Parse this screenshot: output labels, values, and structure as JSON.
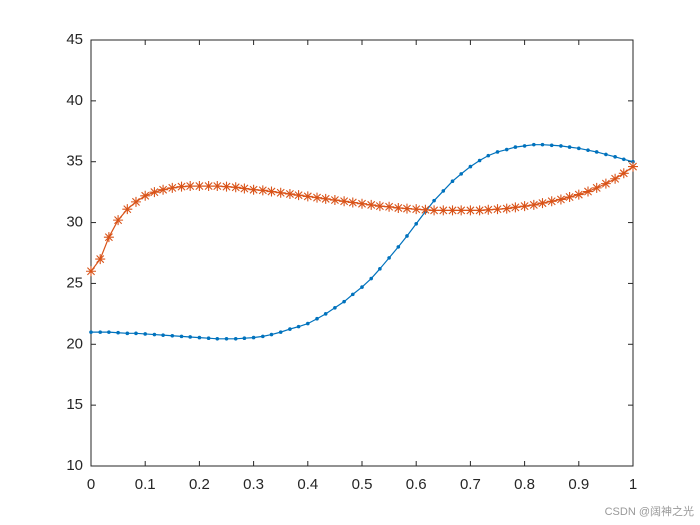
{
  "chart_data": {
    "type": "line",
    "x": [
      0,
      0.017,
      0.033,
      0.05,
      0.067,
      0.083,
      0.1,
      0.117,
      0.133,
      0.15,
      0.167,
      0.183,
      0.2,
      0.217,
      0.233,
      0.25,
      0.267,
      0.283,
      0.3,
      0.317,
      0.333,
      0.35,
      0.367,
      0.383,
      0.4,
      0.417,
      0.433,
      0.45,
      0.467,
      0.483,
      0.5,
      0.517,
      0.533,
      0.55,
      0.567,
      0.583,
      0.6,
      0.617,
      0.633,
      0.65,
      0.667,
      0.683,
      0.7,
      0.717,
      0.733,
      0.75,
      0.767,
      0.783,
      0.8,
      0.817,
      0.833,
      0.85,
      0.867,
      0.883,
      0.9,
      0.917,
      0.933,
      0.95,
      0.967,
      0.983,
      1
    ],
    "series": [
      {
        "color": "#0072bd",
        "marker": "dot",
        "values": [
          21.0,
          21.0,
          21.0,
          20.95,
          20.9,
          20.9,
          20.85,
          20.8,
          20.75,
          20.7,
          20.65,
          20.6,
          20.55,
          20.5,
          20.45,
          20.45,
          20.45,
          20.5,
          20.55,
          20.65,
          20.8,
          21.0,
          21.25,
          21.45,
          21.7,
          22.1,
          22.5,
          23.0,
          23.5,
          24.1,
          24.7,
          25.4,
          26.2,
          27.1,
          28.0,
          28.9,
          29.9,
          30.9,
          31.8,
          32.6,
          33.4,
          34.0,
          34.6,
          35.1,
          35.5,
          35.8,
          36.0,
          36.2,
          36.3,
          36.4,
          36.4,
          36.35,
          36.3,
          36.2,
          36.1,
          35.95,
          35.8,
          35.6,
          35.4,
          35.2,
          35.0
        ]
      },
      {
        "color": "#d95319",
        "marker": "asterisk",
        "values": [
          26.0,
          27.0,
          28.8,
          30.2,
          31.1,
          31.7,
          32.2,
          32.5,
          32.7,
          32.85,
          32.95,
          33.0,
          33.0,
          33.0,
          33.0,
          32.95,
          32.9,
          32.8,
          32.7,
          32.65,
          32.55,
          32.45,
          32.35,
          32.25,
          32.15,
          32.05,
          31.95,
          31.85,
          31.75,
          31.65,
          31.55,
          31.45,
          31.35,
          31.3,
          31.2,
          31.15,
          31.1,
          31.05,
          31.0,
          31.0,
          31.0,
          31.0,
          31.0,
          31.0,
          31.05,
          31.1,
          31.15,
          31.25,
          31.35,
          31.45,
          31.6,
          31.75,
          31.9,
          32.1,
          32.3,
          32.55,
          32.85,
          33.2,
          33.6,
          34.05,
          34.6
        ]
      }
    ],
    "xlim": [
      0,
      1
    ],
    "xticks": [
      0,
      0.1,
      0.2,
      0.3,
      0.4,
      0.5,
      0.6,
      0.7,
      0.8,
      0.9,
      1
    ],
    "ylim": [
      10,
      45
    ],
    "yticks": [
      10,
      15,
      20,
      25,
      30,
      35,
      40,
      45
    ],
    "grid": false,
    "watermark": "CSDN @阔神之光"
  }
}
